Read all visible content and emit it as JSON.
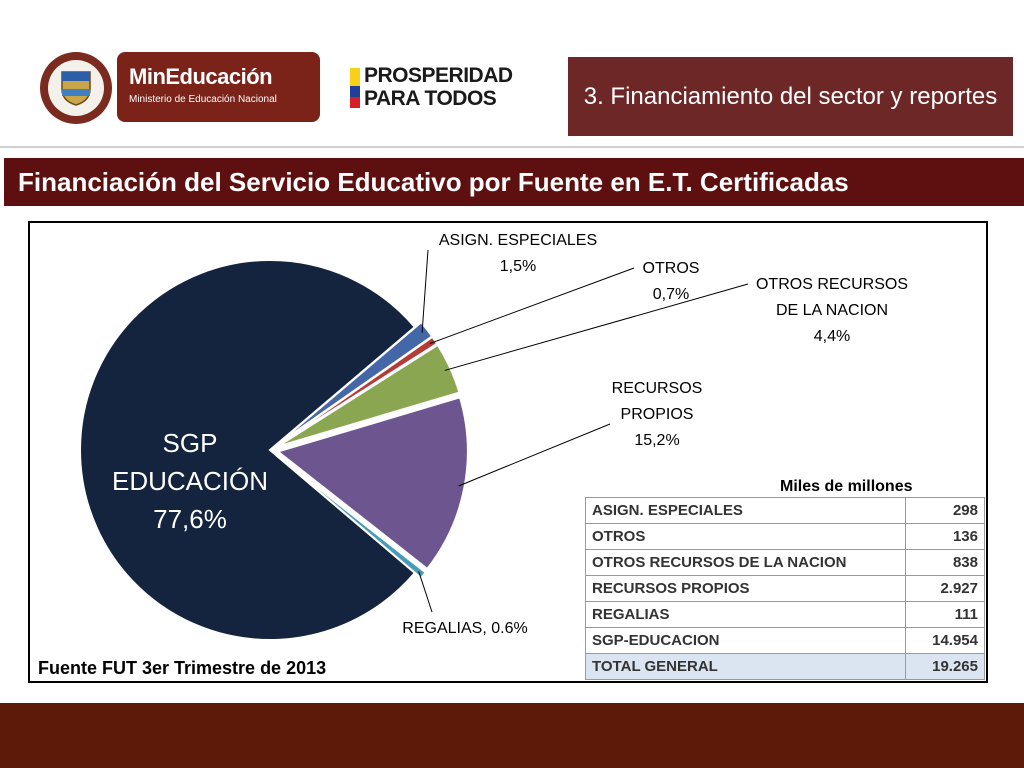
{
  "header": {
    "mined_title": "MinEducación",
    "mined_subtitle": "Ministerio de Educación Nacional",
    "prosperidad_line1": "PROSPERIDAD",
    "prosperidad_line2": "PARA TODOS",
    "section": "3. Financiamiento del sector y reportes",
    "flag_colors": [
      "#f7d117",
      "#1f3f99",
      "#d61e2a"
    ]
  },
  "title": "Financiación del Servicio Educativo por Fuente en E.T. Certificadas",
  "chart_data": {
    "type": "pie",
    "title": "",
    "slices": [
      {
        "name": "SGP EDUCACIÓN",
        "value": 77.6,
        "label_lines": [
          "SGP",
          "EDUCACIÓN",
          "77,6%"
        ],
        "color": "#14243f"
      },
      {
        "name": "ASIGN. ESPECIALES",
        "value": 1.5,
        "label_lines": [
          "ASIGN. ESPECIALES",
          "1,5%"
        ],
        "color": "#4467a8"
      },
      {
        "name": "OTROS",
        "value": 0.7,
        "label_lines": [
          "OTROS",
          "0,7%"
        ],
        "color": "#b53a3a"
      },
      {
        "name": "OTROS RECURSOS DE LA NACION",
        "value": 4.4,
        "label_lines": [
          "OTROS RECURSOS",
          "DE LA NACION",
          "4,4%"
        ],
        "color": "#8aa651"
      },
      {
        "name": "RECURSOS PROPIOS",
        "value": 15.2,
        "label_lines": [
          "RECURSOS",
          "PROPIOS",
          "15,2%"
        ],
        "color": "#6d568f"
      },
      {
        "name": "REGALIAS",
        "value": 0.6,
        "label_lines": [
          "REGALIAS, 0.6%"
        ],
        "color": "#4a9bb7"
      }
    ]
  },
  "source": "Fuente FUT 3er Trimestre de 2013",
  "units": "Miles de millones",
  "table": {
    "rows": [
      {
        "label": "ASIGN. ESPECIALES",
        "value": "298"
      },
      {
        "label": "OTROS",
        "value": "136"
      },
      {
        "label": "OTROS RECURSOS DE LA NACION",
        "value": "838"
      },
      {
        "label": "RECURSOS PROPIOS",
        "value": "2.927"
      },
      {
        "label": "REGALIAS",
        "value": "111"
      },
      {
        "label": "SGP-EDUCACION",
        "value": "14.954"
      }
    ],
    "total": {
      "label": "TOTAL GENERAL",
      "value": "19.265"
    }
  }
}
